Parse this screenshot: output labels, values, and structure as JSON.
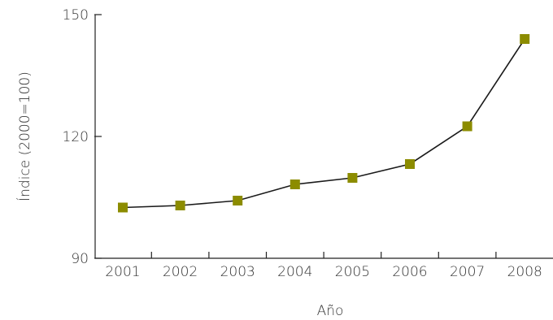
{
  "chart_data": {
    "type": "line",
    "title": "",
    "xlabel": "Año",
    "ylabel": "Índice  (2000=100)",
    "categories": [
      "2001",
      "2002",
      "2003",
      "2004",
      "2005",
      "2006",
      "2007",
      "2008"
    ],
    "ylim": [
      90,
      150
    ],
    "yticks": [
      90,
      120,
      150
    ],
    "grid": false,
    "legend": "none",
    "series": [
      {
        "values": [
          102.5,
          103.0,
          104.2,
          108.2,
          109.8,
          113.2,
          122.5,
          144.0
        ],
        "color": "#8c8c00",
        "line_color": "#1a1a1a",
        "marker": "square"
      }
    ]
  }
}
